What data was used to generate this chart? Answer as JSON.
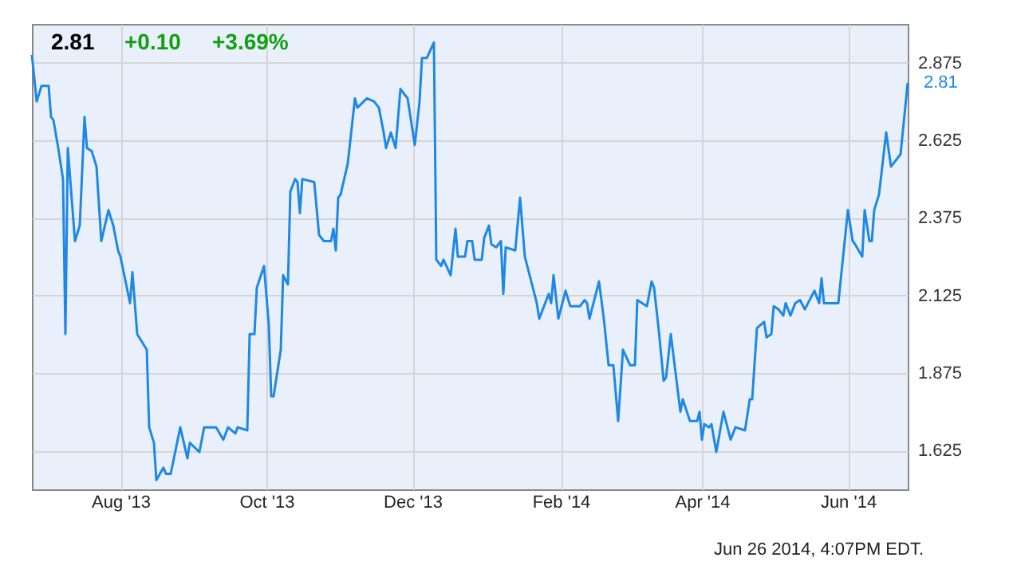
{
  "chart_data": {
    "type": "line",
    "title": "2.81",
    "annotations": [
      "+0.10",
      "+3.69%",
      {
        "text": "2.81",
        "x": "2014-06-26",
        "y": 2.81
      },
      "Jun 26 2014, 4:07PM EDT."
    ],
    "x": [
      "2013-06-25",
      "2013-06-27",
      "2013-06-29",
      "2013-07-02",
      "2013-07-03",
      "2013-07-04",
      "2013-07-06",
      "2013-07-08",
      "2013-07-09",
      "2013-07-10",
      "2013-07-13",
      "2013-07-15",
      "2013-07-17",
      "2013-07-18",
      "2013-07-20",
      "2013-07-22",
      "2013-07-24",
      "2013-07-27",
      "2013-07-29",
      "2013-07-31",
      "2013-08-01",
      "2013-08-05",
      "2013-08-06",
      "2013-08-08",
      "2013-08-12",
      "2013-08-13",
      "2013-08-15",
      "2013-08-16",
      "2013-08-19",
      "2013-08-20",
      "2013-08-22",
      "2013-08-26",
      "2013-08-29",
      "2013-08-30",
      "2013-09-03",
      "2013-09-05",
      "2013-09-10",
      "2013-09-13",
      "2013-09-15",
      "2013-09-18",
      "2013-09-19",
      "2013-09-23",
      "2013-09-24",
      "2013-09-26",
      "2013-09-27",
      "2013-09-30",
      "2013-10-02",
      "2013-10-03",
      "2013-10-04",
      "2013-10-07",
      "2013-10-08",
      "2013-10-10",
      "2013-10-11",
      "2013-10-13",
      "2013-10-14",
      "2013-10-15",
      "2013-10-16",
      "2013-10-21",
      "2013-10-23",
      "2013-10-25",
      "2013-10-28",
      "2013-10-29",
      "2013-10-30",
      "2013-10-31",
      "2013-11-01",
      "2013-11-04",
      "2013-11-07",
      "2013-11-08",
      "2013-11-12",
      "2013-11-15",
      "2013-11-17",
      "2013-11-19",
      "2013-11-20",
      "2013-11-22",
      "2013-11-24",
      "2013-11-26",
      "2013-11-29",
      "2013-12-02",
      "2013-12-04",
      "2013-12-05",
      "2013-12-07",
      "2013-12-10",
      "2013-12-11",
      "2013-12-13",
      "2013-12-14",
      "2013-12-17",
      "2013-12-19",
      "2013-12-20",
      "2013-12-23",
      "2013-12-24",
      "2013-12-26",
      "2013-12-27",
      "2013-12-30",
      "2013-12-31",
      "2014-01-02",
      "2014-01-03",
      "2014-01-05",
      "2014-01-07",
      "2014-01-08",
      "2014-01-09",
      "2014-01-13",
      "2014-01-15",
      "2014-01-17",
      "2014-01-22",
      "2014-01-23",
      "2014-01-27",
      "2014-01-28",
      "2014-01-29",
      "2014-01-31",
      "2014-02-03",
      "2014-02-05",
      "2014-02-09",
      "2014-02-11",
      "2014-02-12",
      "2014-02-13",
      "2014-02-17",
      "2014-02-19",
      "2014-02-21",
      "2014-02-23",
      "2014-02-25",
      "2014-02-27",
      "2014-03-02",
      "2014-03-04",
      "2014-03-05",
      "2014-03-09",
      "2014-03-11",
      "2014-03-12",
      "2014-03-14",
      "2014-03-16",
      "2014-03-17",
      "2014-03-19",
      "2014-03-23",
      "2014-03-24",
      "2014-03-27",
      "2014-03-30",
      "2014-03-31",
      "2014-04-01",
      "2014-04-02",
      "2014-04-04",
      "2014-04-05",
      "2014-04-07",
      "2014-04-10",
      "2014-04-13",
      "2014-04-15",
      "2014-04-19",
      "2014-04-21",
      "2014-04-22",
      "2014-04-24",
      "2014-04-27",
      "2014-04-28",
      "2014-04-30",
      "2014-05-01",
      "2014-05-03",
      "2014-05-05",
      "2014-05-06",
      "2014-05-08",
      "2014-05-10",
      "2014-05-12",
      "2014-05-14",
      "2014-05-18",
      "2014-05-20",
      "2014-05-21",
      "2014-05-22",
      "2014-05-28",
      "2014-06-01",
      "2014-06-03",
      "2014-06-04",
      "2014-06-07",
      "2014-06-08",
      "2014-06-10",
      "2014-06-11",
      "2014-06-12",
      "2014-06-14",
      "2014-06-17",
      "2014-06-19",
      "2014-06-23",
      "2014-06-26"
    ],
    "series": [
      {
        "color": "#1e88e5",
        "values": [
          2.9,
          2.75,
          2.8,
          2.8,
          2.7,
          2.69,
          2.6,
          2.5,
          2.0,
          2.6,
          2.3,
          2.35,
          2.7,
          2.6,
          2.59,
          2.54,
          2.3,
          2.4,
          2.35,
          2.27,
          2.25,
          2.1,
          2.2,
          2.0,
          1.95,
          1.7,
          1.65,
          1.53,
          1.57,
          1.55,
          1.55,
          1.7,
          1.6,
          1.65,
          1.62,
          1.7,
          1.7,
          1.66,
          1.7,
          1.68,
          1.7,
          1.69,
          2.0,
          2.0,
          2.15,
          2.22,
          2.03,
          1.8,
          1.8,
          1.95,
          2.19,
          2.16,
          2.46,
          2.5,
          2.49,
          2.39,
          2.5,
          2.49,
          2.32,
          2.3,
          2.3,
          2.34,
          2.27,
          2.44,
          2.45,
          2.55,
          2.76,
          2.73,
          2.76,
          2.75,
          2.73,
          2.65,
          2.6,
          2.65,
          2.6,
          2.79,
          2.76,
          2.61,
          2.75,
          2.89,
          2.89,
          2.94,
          2.24,
          2.22,
          2.24,
          2.19,
          2.34,
          2.25,
          2.25,
          2.3,
          2.3,
          2.24,
          2.24,
          2.31,
          2.35,
          2.29,
          2.28,
          2.3,
          2.13,
          2.28,
          2.27,
          2.44,
          2.25,
          2.1,
          2.05,
          2.13,
          2.1,
          2.19,
          2.05,
          2.14,
          2.09,
          2.09,
          2.11,
          2.1,
          2.05,
          2.17,
          2.05,
          1.9,
          1.9,
          1.72,
          1.95,
          1.9,
          1.9,
          2.11,
          2.09,
          2.17,
          2.15,
          2.01,
          1.85,
          1.86,
          2.0,
          1.75,
          1.79,
          1.72,
          1.72,
          1.75,
          1.66,
          1.71,
          1.7,
          1.71,
          1.62,
          1.75,
          1.66,
          1.7,
          1.69,
          1.79,
          1.79,
          2.02,
          2.04,
          1.99,
          2.0,
          2.09,
          2.08,
          2.06,
          2.1,
          2.06,
          2.1,
          2.11,
          2.08,
          2.14,
          2.1,
          2.18,
          2.1,
          2.1,
          2.4,
          2.3,
          2.29,
          2.25,
          2.4,
          2.3,
          2.3,
          2.4,
          2.45,
          2.65,
          2.54,
          2.58,
          2.81
        ]
      }
    ],
    "xlim": [
      "2013-06-25",
      "2014-06-26"
    ],
    "xticks": [
      {
        "value": "2013-08-01",
        "label": "Aug '13"
      },
      {
        "value": "2013-10-01",
        "label": "Oct '13"
      },
      {
        "value": "2013-12-01",
        "label": "Dec '13"
      },
      {
        "value": "2014-02-01",
        "label": "Feb '14"
      },
      {
        "value": "2014-04-01",
        "label": "Apr '14"
      },
      {
        "value": "2014-06-01",
        "label": "Jun '14"
      }
    ],
    "ylim": [
      1.5,
      3.0
    ],
    "yticks": [
      1.625,
      1.875,
      2.125,
      2.375,
      2.625,
      2.875
    ],
    "grid": true,
    "marker": "none",
    "line_style": "solid"
  }
}
